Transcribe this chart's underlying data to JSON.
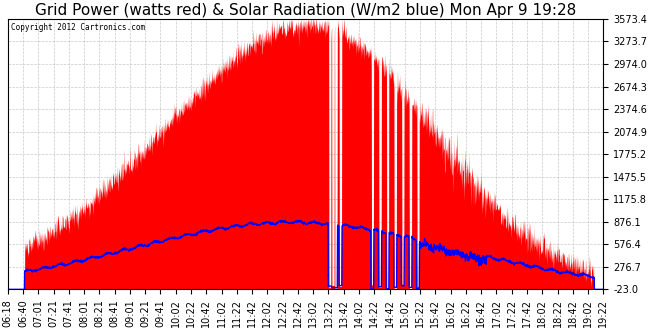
{
  "title": "Grid Power (watts red) & Solar Radiation (W/m2 blue) Mon Apr 9 19:28",
  "copyright": "Copyright 2012 Cartronics.com",
  "ymin": -23.0,
  "ymax": 3573.4,
  "yticks": [
    3573.4,
    3273.7,
    2974.0,
    2674.3,
    2374.6,
    2074.9,
    1775.2,
    1475.5,
    1175.8,
    876.1,
    576.4,
    276.7,
    -23.0
  ],
  "x_labels": [
    "06:18",
    "06:40",
    "07:01",
    "07:21",
    "07:41",
    "08:01",
    "08:21",
    "08:41",
    "09:01",
    "09:21",
    "09:41",
    "10:02",
    "10:22",
    "10:42",
    "11:02",
    "11:22",
    "11:42",
    "12:02",
    "12:22",
    "12:42",
    "13:02",
    "13:22",
    "13:42",
    "14:02",
    "14:22",
    "14:42",
    "15:02",
    "15:22",
    "15:42",
    "16:02",
    "16:22",
    "16:42",
    "17:02",
    "17:22",
    "17:42",
    "18:02",
    "18:22",
    "18:42",
    "19:02",
    "19:22"
  ],
  "background_color": "#ffffff",
  "fill_color": "#ff0000",
  "line_color": "#0000ff",
  "grid_color": "#bbbbbb",
  "title_fontsize": 11,
  "tick_fontsize": 7
}
